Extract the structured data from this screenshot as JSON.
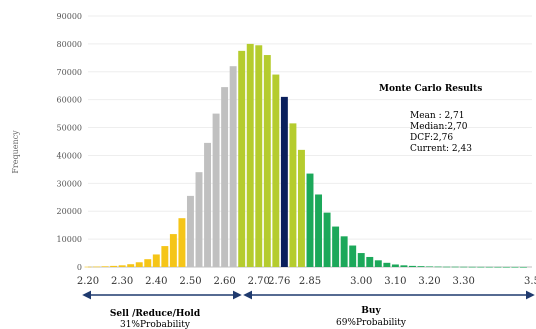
{
  "chart_data": {
    "type": "bar",
    "ylabel": "Frequency",
    "ylim": [
      0,
      90000
    ],
    "yticks": [
      "0",
      "10000",
      "20000",
      "30000",
      "40000",
      "50000",
      "60000",
      "70000",
      "80000",
      "90000"
    ],
    "xlim": [
      2.2,
      3.5
    ],
    "xticks": [
      "2.20",
      "2.30",
      "2.40",
      "2.50",
      "2.60",
      "2.70",
      "2.76",
      "2.85",
      "3.00",
      "3.10",
      "3.20",
      "3.30",
      "3.5"
    ],
    "x": [
      2.2,
      2.225,
      2.25,
      2.275,
      2.3,
      2.325,
      2.35,
      2.375,
      2.4,
      2.425,
      2.45,
      2.475,
      2.5,
      2.525,
      2.55,
      2.575,
      2.6,
      2.625,
      2.65,
      2.675,
      2.7,
      2.725,
      2.75,
      2.775,
      2.8,
      2.825,
      2.85,
      2.875,
      2.9,
      2.925,
      2.95,
      2.975,
      3.0,
      3.025,
      3.05,
      3.075,
      3.1,
      3.125,
      3.15,
      3.175,
      3.2,
      3.225,
      3.25,
      3.275,
      3.3,
      3.325,
      3.35,
      3.375,
      3.4,
      3.425,
      3.45,
      3.475
    ],
    "values": [
      100,
      150,
      250,
      400,
      600,
      1000,
      1700,
      2800,
      4500,
      7500,
      11800,
      17500,
      25500,
      34000,
      44500,
      55000,
      64500,
      72000,
      77500,
      80000,
      79500,
      76000,
      69000,
      61000,
      51500,
      42000,
      33500,
      26000,
      19500,
      14500,
      11000,
      7700,
      5000,
      3600,
      2400,
      1500,
      900,
      600,
      400,
      300,
      200,
      150,
      100,
      100,
      80,
      60,
      50,
      40,
      30,
      20,
      20,
      10
    ],
    "colors": {
      "sell_low": "#f5c518",
      "sell": "#c0c0c0",
      "buy_light": "#b5cc2e",
      "current": "#0a1f5c",
      "buy_dark": "#1ca85a"
    },
    "results": {
      "title": "Monte Carlo Results",
      "lines": [
        "Mean : 2,71",
        "Median:2,70",
        "DCF:2,76",
        "Current:  2,43"
      ]
    },
    "zones": {
      "sell": {
        "label": "Sell /Reduce/Hold",
        "prob": "31%Probability"
      },
      "buy": {
        "label": "Buy",
        "prob": "69%Probability"
      }
    }
  }
}
